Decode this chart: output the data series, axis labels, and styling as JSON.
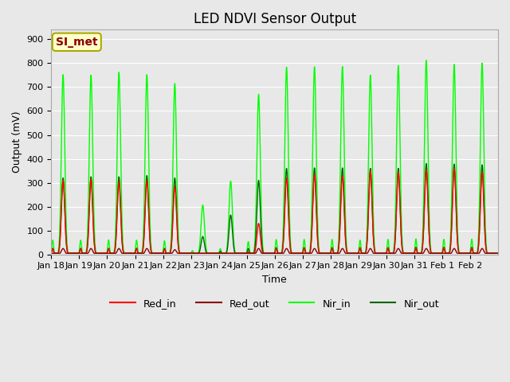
{
  "title": "LED NDVI Sensor Output",
  "xlabel": "Time",
  "ylabel": "Output (mV)",
  "ylim": [
    0,
    940
  ],
  "yticks": [
    0,
    100,
    200,
    300,
    400,
    500,
    600,
    700,
    800,
    900
  ],
  "background_color": "#e8e8e8",
  "plot_bg_color": "#e8e8e8",
  "annotation_text": "SI_met",
  "line_colors": {
    "Red_in": "#ff0000",
    "Red_out": "#8b0000",
    "Nir_in": "#00ff00",
    "Nir_out": "#006400"
  },
  "x_tick_labels": [
    "Jan 18",
    "Jan 19",
    "Jan 20",
    "Jan 21",
    "Jan 22",
    "Jan 23",
    "Jan 24",
    "Jan 25",
    "Jan 26",
    "Jan 27",
    "Jan 28",
    "Jan 29",
    "Jan 30",
    "Jan 31",
    "Feb 1",
    "Feb 2"
  ],
  "num_days": 16,
  "day_peaks": {
    "Red_in": [
      310,
      315,
      305,
      310,
      285,
      5,
      5,
      130,
      320,
      335,
      330,
      350,
      345,
      355,
      360,
      345
    ],
    "Red_out": [
      25,
      25,
      25,
      25,
      20,
      5,
      5,
      25,
      25,
      25,
      25,
      25,
      25,
      25,
      25,
      25
    ],
    "Nir_in": [
      752,
      750,
      762,
      752,
      715,
      207,
      307,
      670,
      783,
      785,
      786,
      750,
      790,
      812,
      795,
      800
    ],
    "Nir_out": [
      320,
      325,
      325,
      330,
      320,
      75,
      165,
      310,
      360,
      362,
      362,
      360,
      360,
      380,
      378,
      375
    ]
  },
  "base_value": 5
}
